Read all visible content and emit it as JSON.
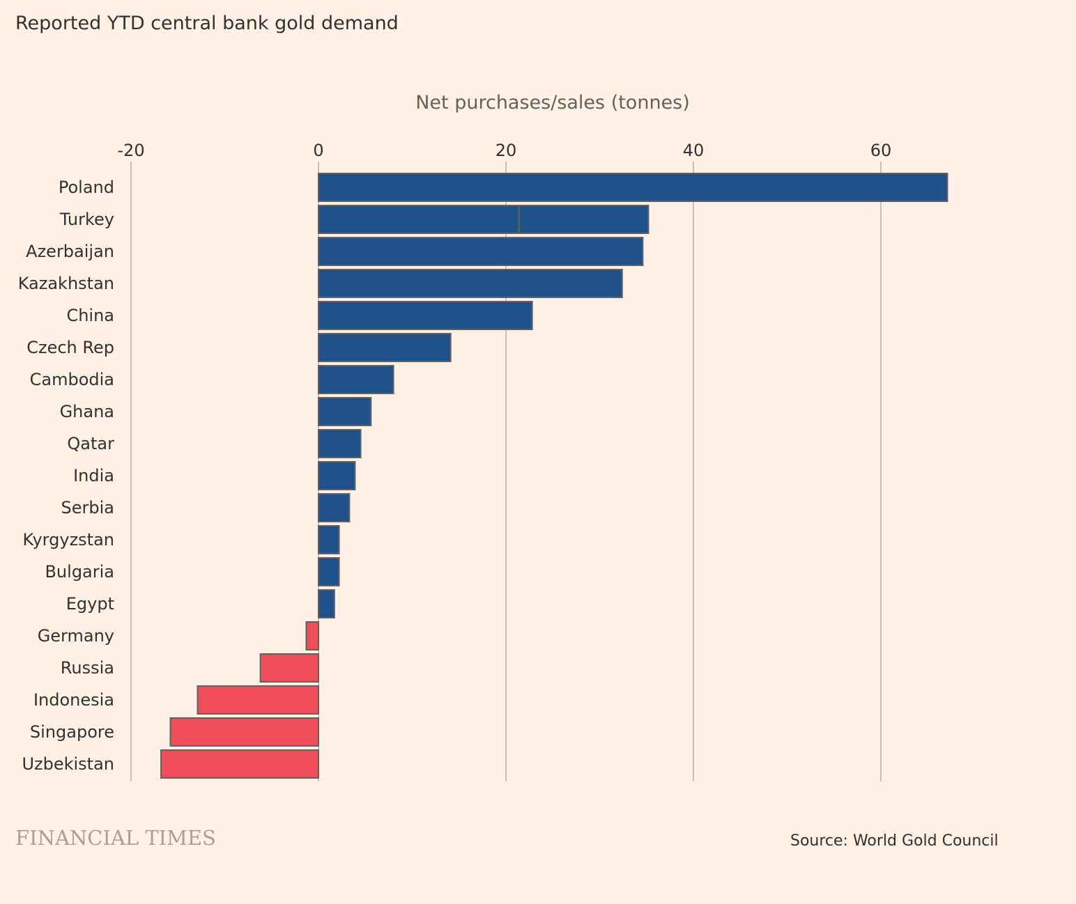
{
  "title": "Reported YTD central bank gold demand",
  "source": "Source: World Gold Council",
  "logo": "FINANCIAL TIMES",
  "chart_data": {
    "type": "bar",
    "orientation": "horizontal",
    "xlabel": "Net purchases/sales (tonnes)",
    "xlim": [
      -20,
      70
    ],
    "xticks": [
      -20,
      0,
      20,
      40,
      60
    ],
    "xtick_labels": [
      "-20",
      "0",
      "20",
      "40",
      "60"
    ],
    "grid": "vertical",
    "colors": {
      "positive": "#1f5289",
      "negative": "#f04e5b",
      "edge": "#66605c",
      "grid": "#b9b0a8"
    },
    "categories": [
      "Poland",
      "Turkey",
      "Azerbaijan",
      "Kazakhstan",
      "China",
      "Czech Rep",
      "Cambodia",
      "Ghana",
      "Qatar",
      "India",
      "Serbia",
      "Kyrgyzstan",
      "Bulgaria",
      "Egypt",
      "Germany",
      "Russia",
      "Indonesia",
      "Singapore",
      "Uzbekistan"
    ],
    "values": [
      67.1,
      35.2,
      34.6,
      32.4,
      22.8,
      14.1,
      8.0,
      5.6,
      4.5,
      3.9,
      3.3,
      2.2,
      2.2,
      1.7,
      -1.3,
      -6.2,
      -12.9,
      -15.8,
      -16.8
    ],
    "segments": {
      "Turkey": [
        21.4,
        13.8
      ]
    }
  }
}
